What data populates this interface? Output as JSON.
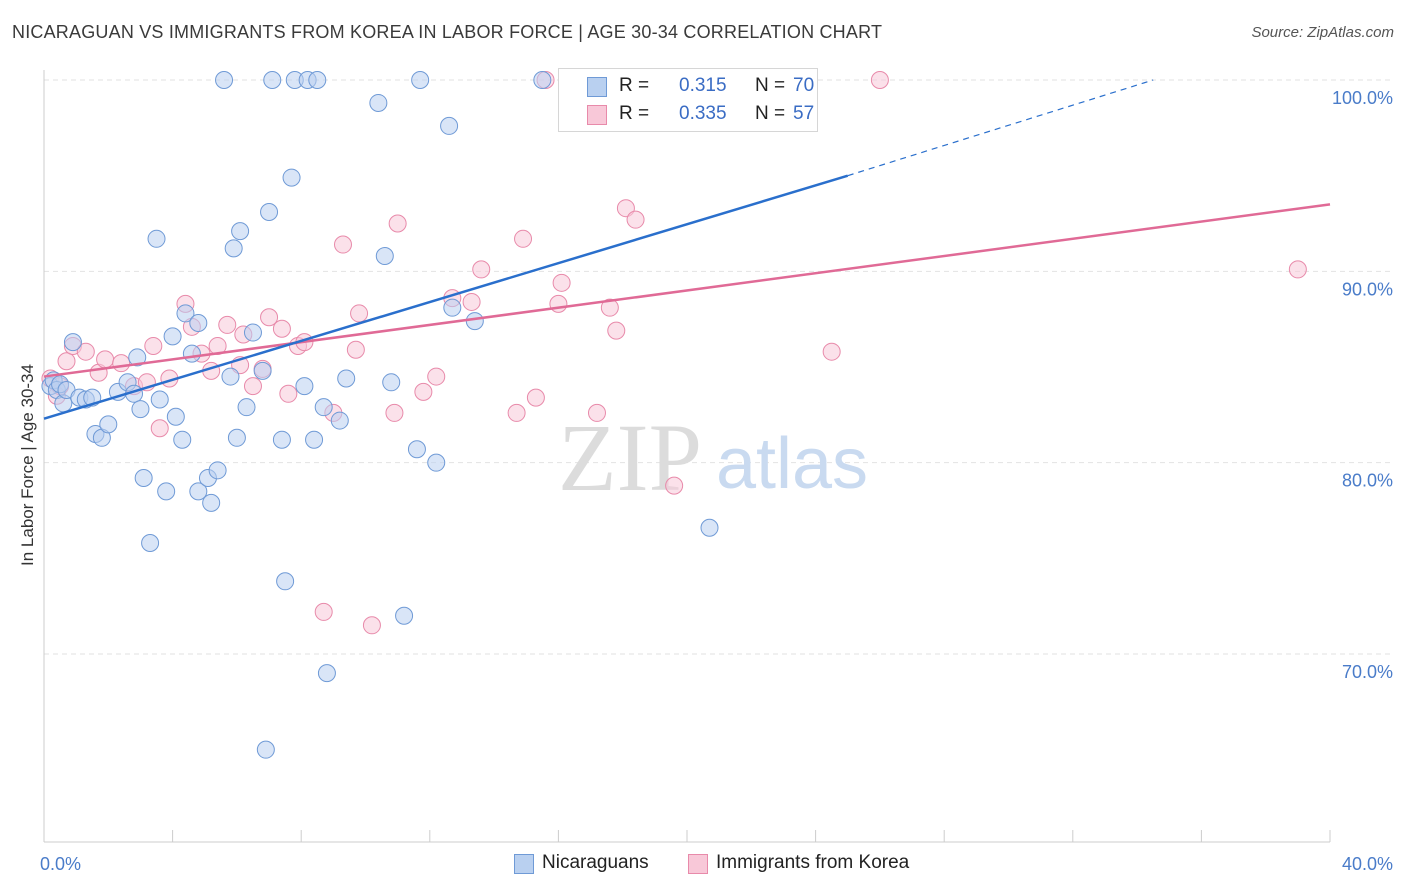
{
  "title": "NICARAGUAN VS IMMIGRANTS FROM KOREA IN LABOR FORCE | AGE 30-34 CORRELATION CHART",
  "source": "Source: ZipAtlas.com",
  "watermark": {
    "zip": "ZIP",
    "atlas": "atlas"
  },
  "legend_top": {
    "rows": [
      {
        "r_label": "R = ",
        "r_value": "0.315",
        "n_label": "N = ",
        "n_value": "70"
      },
      {
        "r_label": "R = ",
        "r_value": "0.335",
        "n_label": "N = ",
        "n_value": "57"
      }
    ]
  },
  "legend_bottom": [
    "Nicaraguans",
    "Immigrants from Korea"
  ],
  "colors": {
    "blue_fill": "#b9d0f0",
    "blue_stroke": "#6f9ad6",
    "blue_line": "#2a6fcc",
    "pink_fill": "#f8c8d8",
    "pink_stroke": "#e88aaa",
    "pink_line": "#e06a96",
    "axis_text": "#4a7cc9",
    "grid": "#e2e2e2"
  },
  "chart_data": {
    "type": "scatter",
    "xlabel": "",
    "ylabel": "In Labor Force | Age 30-34",
    "xlim": [
      0,
      40
    ],
    "ylim": [
      61,
      101.5
    ],
    "x_tick_labels": [
      {
        "value": 0,
        "label": "0.0%"
      },
      {
        "value": 40,
        "label": "40.0%"
      }
    ],
    "y_tick_labels": [
      {
        "value": 70,
        "label": "70.0%"
      },
      {
        "value": 80,
        "label": "80.0%"
      },
      {
        "value": 90,
        "label": "90.0%"
      },
      {
        "value": 100,
        "label": "100.0%"
      }
    ],
    "series": [
      {
        "name": "Nicaraguans",
        "points": [
          [
            0.2,
            84.0
          ],
          [
            0.3,
            84.3
          ],
          [
            0.4,
            83.8
          ],
          [
            0.5,
            84.1
          ],
          [
            0.6,
            83.1
          ],
          [
            0.7,
            83.8
          ],
          [
            0.9,
            86.3
          ],
          [
            1.1,
            83.4
          ],
          [
            1.3,
            83.3
          ],
          [
            1.5,
            83.4
          ],
          [
            1.6,
            81.5
          ],
          [
            1.8,
            81.3
          ],
          [
            2.0,
            82.0
          ],
          [
            2.3,
            83.7
          ],
          [
            2.6,
            84.2
          ],
          [
            2.9,
            85.5
          ],
          [
            2.8,
            83.6
          ],
          [
            3.0,
            82.8
          ],
          [
            3.1,
            79.2
          ],
          [
            3.3,
            75.8
          ],
          [
            3.5,
            91.7
          ],
          [
            3.6,
            83.3
          ],
          [
            3.8,
            78.5
          ],
          [
            4.0,
            86.6
          ],
          [
            4.1,
            82.4
          ],
          [
            4.3,
            81.2
          ],
          [
            4.4,
            87.8
          ],
          [
            4.6,
            85.7
          ],
          [
            4.8,
            87.3
          ],
          [
            4.8,
            78.5
          ],
          [
            5.1,
            79.2
          ],
          [
            5.2,
            77.9
          ],
          [
            5.4,
            79.6
          ],
          [
            5.6,
            100.0
          ],
          [
            5.8,
            84.5
          ],
          [
            5.9,
            91.2
          ],
          [
            6.0,
            81.3
          ],
          [
            6.1,
            92.1
          ],
          [
            6.3,
            82.9
          ],
          [
            6.5,
            86.8
          ],
          [
            6.8,
            84.8
          ],
          [
            6.9,
            65.0
          ],
          [
            7.0,
            93.1
          ],
          [
            7.1,
            100.0
          ],
          [
            7.4,
            81.2
          ],
          [
            7.5,
            73.8
          ],
          [
            7.7,
            94.9
          ],
          [
            7.8,
            100.0
          ],
          [
            8.1,
            84.0
          ],
          [
            8.2,
            100.0
          ],
          [
            8.4,
            81.2
          ],
          [
            8.5,
            100.0
          ],
          [
            8.7,
            82.9
          ],
          [
            8.8,
            69.0
          ],
          [
            9.2,
            82.2
          ],
          [
            9.4,
            84.4
          ],
          [
            10.4,
            98.8
          ],
          [
            10.6,
            90.8
          ],
          [
            10.8,
            84.2
          ],
          [
            11.2,
            72.0
          ],
          [
            11.6,
            80.7
          ],
          [
            11.7,
            100.0
          ],
          [
            12.2,
            80.0
          ],
          [
            12.6,
            97.6
          ],
          [
            12.7,
            88.1
          ],
          [
            13.4,
            87.4
          ],
          [
            15.5,
            100.0
          ],
          [
            19.2,
            100.0
          ],
          [
            20.7,
            76.6
          ],
          [
            16.3,
            100.0
          ]
        ]
      },
      {
        "name": "Immigrants from Korea",
        "points": [
          [
            0.2,
            84.4
          ],
          [
            0.4,
            83.5
          ],
          [
            0.5,
            84.0
          ],
          [
            0.7,
            85.3
          ],
          [
            0.9,
            86.1
          ],
          [
            1.3,
            85.8
          ],
          [
            1.7,
            84.7
          ],
          [
            1.9,
            85.4
          ],
          [
            2.4,
            85.2
          ],
          [
            2.8,
            84.0
          ],
          [
            3.2,
            84.2
          ],
          [
            3.4,
            86.1
          ],
          [
            3.6,
            81.8
          ],
          [
            3.9,
            84.4
          ],
          [
            4.4,
            88.3
          ],
          [
            4.6,
            87.1
          ],
          [
            4.9,
            85.7
          ],
          [
            5.2,
            84.8
          ],
          [
            5.4,
            86.1
          ],
          [
            5.7,
            87.2
          ],
          [
            6.1,
            85.1
          ],
          [
            6.2,
            86.7
          ],
          [
            6.5,
            84.0
          ],
          [
            6.8,
            84.9
          ],
          [
            7.0,
            87.6
          ],
          [
            7.4,
            87.0
          ],
          [
            7.6,
            83.6
          ],
          [
            7.9,
            86.1
          ],
          [
            8.1,
            86.3
          ],
          [
            8.7,
            72.2
          ],
          [
            9.0,
            82.6
          ],
          [
            9.3,
            91.4
          ],
          [
            9.7,
            85.9
          ],
          [
            9.8,
            87.8
          ],
          [
            10.2,
            71.5
          ],
          [
            10.9,
            82.6
          ],
          [
            11.0,
            92.5
          ],
          [
            11.8,
            83.7
          ],
          [
            12.2,
            84.5
          ],
          [
            12.7,
            88.6
          ],
          [
            13.3,
            88.4
          ],
          [
            13.6,
            90.1
          ],
          [
            14.7,
            82.6
          ],
          [
            14.9,
            91.7
          ],
          [
            15.3,
            83.4
          ],
          [
            15.6,
            100.0
          ],
          [
            16.0,
            88.3
          ],
          [
            16.1,
            89.4
          ],
          [
            17.2,
            82.6
          ],
          [
            17.6,
            88.1
          ],
          [
            17.8,
            86.9
          ],
          [
            18.1,
            93.3
          ],
          [
            18.4,
            92.7
          ],
          [
            19.6,
            78.8
          ],
          [
            24.5,
            85.8
          ],
          [
            26.0,
            100.0
          ],
          [
            39.0,
            90.1
          ]
        ]
      }
    ],
    "trend_lines": [
      {
        "series": "Nicaraguans",
        "x0": 0,
        "y0": 82.3,
        "x1": 25.0,
        "y1": 95.0,
        "dashed_from_x": 25.0,
        "dashed_to_x": 34.5,
        "dashed_to_y": 100.0
      },
      {
        "series": "Immigrants from Korea",
        "x0": 0,
        "y0": 84.5,
        "x1": 40.0,
        "y1": 93.5
      }
    ],
    "grid": true,
    "legend": "top-center"
  }
}
